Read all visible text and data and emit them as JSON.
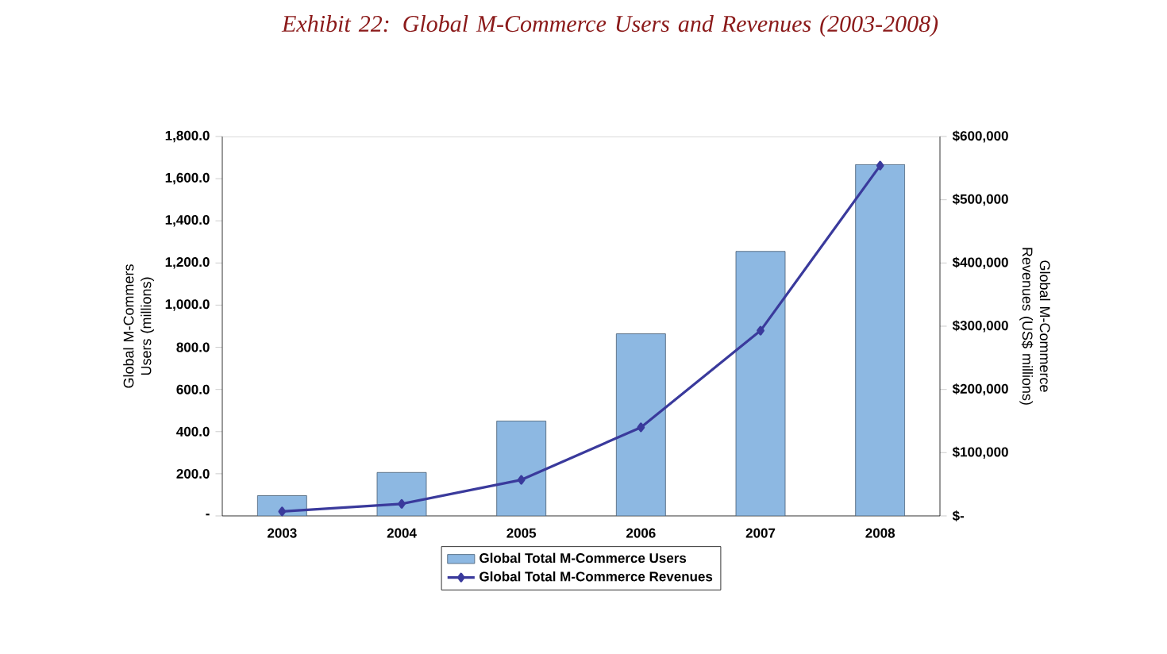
{
  "chart_data": {
    "type": "bar",
    "title": "Exhibit 22:  Global M-Commerce Users and Revenues (2003-2008)",
    "ylabel": "Global M-Commers Users (millions)",
    "y2label": "Global M-Commerce Revenues (US$ millions)",
    "categories": [
      "2003",
      "2004",
      "2005",
      "2006",
      "2007",
      "2008"
    ],
    "series": [
      {
        "name": "Global Total M-Commerce Users",
        "color": "#8db8e2",
        "values": [
          96,
          206,
          450,
          864,
          1255,
          1667
        ]
      },
      {
        "name": "Global Total M-Commerce Revenues",
        "type": "line",
        "axis": "y2",
        "color": "#3a3a9c",
        "marker": "diamond",
        "values": [
          7000,
          19000,
          57000,
          140000,
          293000,
          554000
        ]
      }
    ],
    "ylim": [
      0,
      1800
    ],
    "yticks": [
      {
        "value": 0,
        "label": "-"
      },
      {
        "value": 200,
        "label": "200.0"
      },
      {
        "value": 400,
        "label": "400.0"
      },
      {
        "value": 600,
        "label": "600.0"
      },
      {
        "value": 800,
        "label": "800.0"
      },
      {
        "value": 1000,
        "label": "1,000.0"
      },
      {
        "value": 1200,
        "label": "1,200.0"
      },
      {
        "value": 1400,
        "label": "1,400.0"
      },
      {
        "value": 1600,
        "label": "1,600.0"
      },
      {
        "value": 1800,
        "label": "1,800.0"
      }
    ],
    "y2lim": [
      0,
      600000
    ],
    "y2ticks": [
      {
        "value": 0,
        "label": "$-"
      },
      {
        "value": 100000,
        "label": "$100,000"
      },
      {
        "value": 200000,
        "label": "$200,000"
      },
      {
        "value": 300000,
        "label": "$300,000"
      },
      {
        "value": 400000,
        "label": "$400,000"
      },
      {
        "value": 500000,
        "label": "$500,000"
      },
      {
        "value": 600000,
        "label": "$600,000"
      }
    ],
    "legend": "bottom"
  }
}
